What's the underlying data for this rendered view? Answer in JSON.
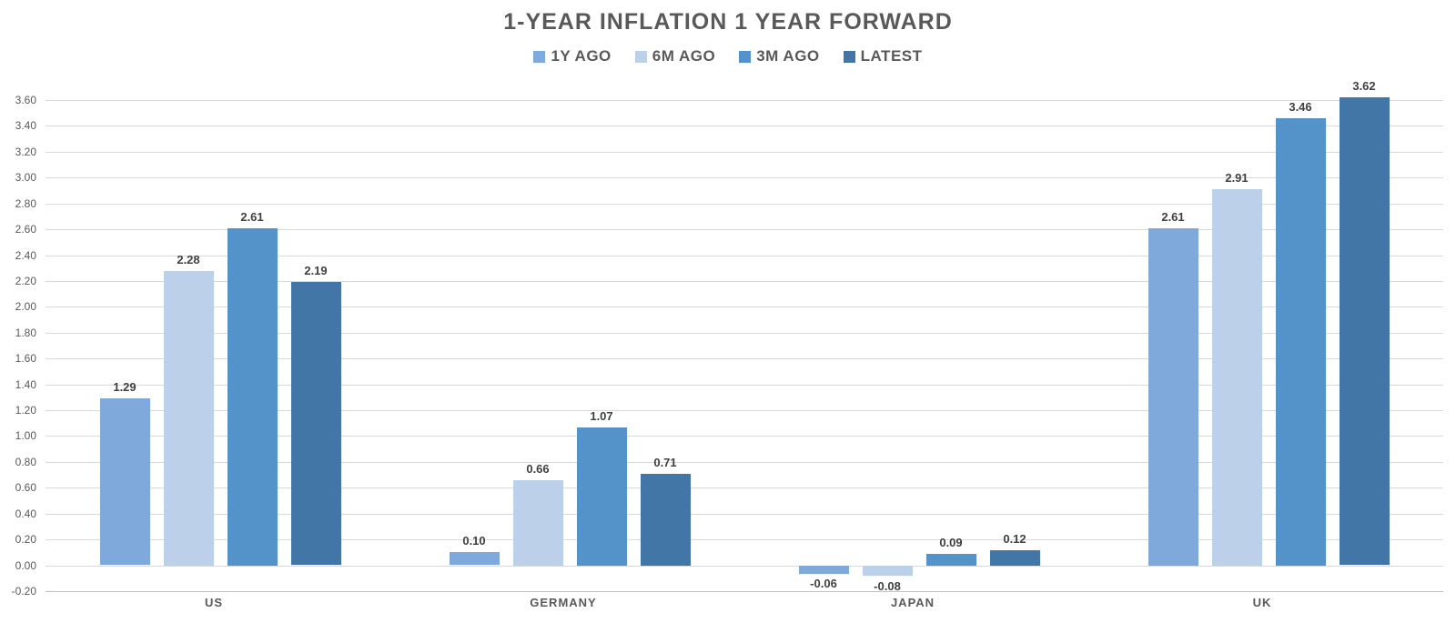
{
  "title": "1-YEAR INFLATION 1 YEAR FORWARD",
  "chart_data": {
    "type": "bar",
    "title": "1-YEAR INFLATION 1 YEAR FORWARD",
    "categories": [
      "US",
      "GERMANY",
      "JAPAN",
      "UK"
    ],
    "series": [
      {
        "name": "1Y AGO",
        "color": "#7FA9DB",
        "values": [
          1.29,
          0.1,
          -0.06,
          2.61
        ]
      },
      {
        "name": "6M AGO",
        "color": "#BDD0EA",
        "values": [
          2.28,
          0.66,
          -0.08,
          2.91
        ]
      },
      {
        "name": "3M AGO",
        "color": "#5492CA",
        "values": [
          2.61,
          1.07,
          0.09,
          3.46
        ]
      },
      {
        "name": "LATEST",
        "color": "#4176A7",
        "values": [
          2.19,
          0.71,
          0.12,
          3.62
        ]
      }
    ],
    "ylim": [
      -0.2,
      3.6
    ],
    "ytick_step": 0.2,
    "ytick_labels": [
      "3.60",
      "3.40",
      "3.20",
      "3.00",
      "2.80",
      "2.60",
      "2.40",
      "2.20",
      "2.00",
      "1.80",
      "1.60",
      "1.40",
      "1.20",
      "1.00",
      "0.80",
      "0.60",
      "0.40",
      "0.20",
      "0.00",
      "-0.20"
    ],
    "value_labels": {
      "US": [
        "1.29",
        "2.28",
        "2.61",
        "2.19"
      ],
      "GERMANY": [
        "0.10",
        "0.66",
        "1.07",
        "0.71"
      ],
      "JAPAN": [
        "-0.06",
        "-0.08",
        "0.09",
        "0.12"
      ],
      "UK": [
        "2.61",
        "2.91",
        "3.46",
        "3.62"
      ]
    },
    "grid": true,
    "legend_position": "top",
    "xlabel": "",
    "ylabel": ""
  },
  "colors": {
    "title_text": "#595959",
    "axis_text": "#595959",
    "value_label_text": "#404040",
    "gridline": "#D9D9D9",
    "background": "#FFFFFF"
  }
}
